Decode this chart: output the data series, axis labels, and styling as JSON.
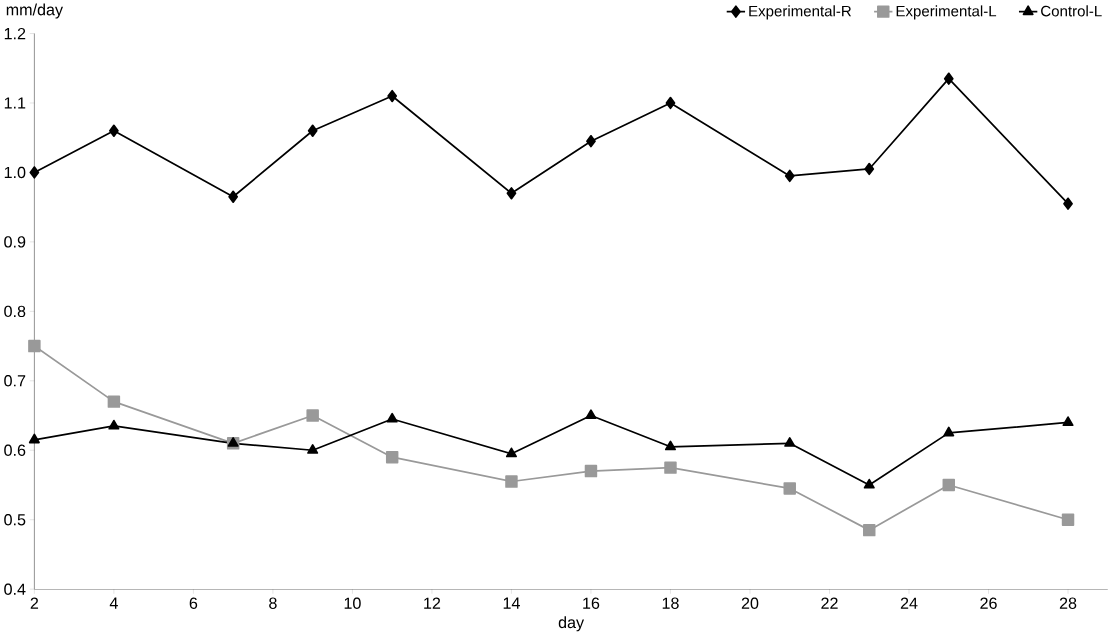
{
  "chart_data": {
    "type": "line",
    "xlabel": "day",
    "ylabel": "mm/day",
    "x": [
      2,
      4,
      7,
      9,
      11,
      14,
      16,
      18,
      21,
      23,
      25,
      28
    ],
    "series": [
      {
        "name": "Experimental-R",
        "color": "#000000",
        "marker": "diamond",
        "values": [
          1.0,
          1.06,
          0.965,
          1.06,
          1.11,
          0.97,
          1.045,
          1.1,
          0.995,
          1.005,
          1.135,
          0.955
        ]
      },
      {
        "name": "Experimental-L",
        "color": "#999999",
        "marker": "square",
        "values": [
          0.75,
          0.67,
          0.61,
          0.65,
          0.59,
          0.555,
          0.57,
          0.575,
          0.545,
          0.485,
          0.55,
          0.5
        ]
      },
      {
        "name": "Control-L",
        "color": "#000000",
        "marker": "triangle",
        "values": [
          0.615,
          0.635,
          0.61,
          0.6,
          0.645,
          0.595,
          0.65,
          0.605,
          0.61,
          0.55,
          0.625,
          0.64
        ]
      }
    ],
    "xlim": [
      2,
      29
    ],
    "xticks": [
      2,
      4,
      6,
      8,
      10,
      12,
      14,
      16,
      18,
      20,
      22,
      24,
      26,
      28
    ],
    "ylim": [
      0.4,
      1.2
    ],
    "yticks": [
      {
        "value": 0.4,
        "label": "0.4"
      },
      {
        "value": 0.5,
        "label": "0.5"
      },
      {
        "value": 0.6,
        "label": "0.6"
      },
      {
        "value": 0.7,
        "label": "0.7"
      },
      {
        "value": 0.8,
        "label": "0.8"
      },
      {
        "value": 0.9,
        "label": "0.9"
      },
      {
        "value": 1.0,
        "label": "1.0"
      },
      {
        "value": 1.1,
        "label": "1.1"
      },
      {
        "value": 1.2,
        "label": "1.2"
      }
    ],
    "legend": "top right",
    "grid": false,
    "line_style": "solid"
  }
}
